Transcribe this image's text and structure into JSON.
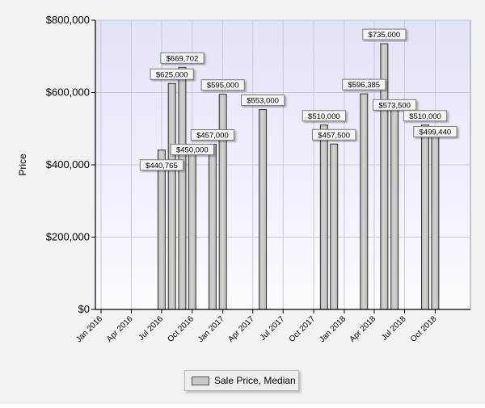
{
  "chart_data": {
    "type": "bar",
    "ylabel": "Price",
    "xlabel": "",
    "title": "",
    "ylim": [
      0,
      800000
    ],
    "y_ticks": [
      0,
      200000,
      400000,
      600000,
      800000
    ],
    "y_tick_labels": [
      "$0",
      "$200,000",
      "$400,000",
      "$600,000",
      "$800,000"
    ],
    "x_range": [
      "2015-12-15",
      "2019-01-15"
    ],
    "x_ticks": [
      {
        "date": "2016-01-01",
        "label": "Jan 2016"
      },
      {
        "date": "2016-04-01",
        "label": "Apr 2016"
      },
      {
        "date": "2016-07-01",
        "label": "Jul 2016"
      },
      {
        "date": "2016-10-01",
        "label": "Oct 2016"
      },
      {
        "date": "2017-01-01",
        "label": "Jan 2017"
      },
      {
        "date": "2017-04-01",
        "label": "Apr 2017"
      },
      {
        "date": "2017-07-01",
        "label": "Jul 2017"
      },
      {
        "date": "2017-10-01",
        "label": "Oct 2017"
      },
      {
        "date": "2018-01-01",
        "label": "Jan 2018"
      },
      {
        "date": "2018-04-01",
        "label": "Apr 2018"
      },
      {
        "date": "2018-07-01",
        "label": "Jul 2018"
      },
      {
        "date": "2018-10-01",
        "label": "Oct 2018"
      }
    ],
    "grid": true,
    "legend_position": "bottom-center",
    "series": [
      {
        "name": "Sale Price, Median",
        "color": "#c6c9c3",
        "points": [
          {
            "date": "2016-07-01",
            "value": 440765,
            "label": "$440,765"
          },
          {
            "date": "2016-08-01",
            "value": 625000,
            "label": "$625,000"
          },
          {
            "date": "2016-09-01",
            "value": 669702,
            "label": "$669,702"
          },
          {
            "date": "2016-10-01",
            "value": 450000,
            "label": "$450,000"
          },
          {
            "date": "2016-12-01",
            "value": 457000,
            "label": "$457,000"
          },
          {
            "date": "2017-01-01",
            "value": 595000,
            "label": "$595,000"
          },
          {
            "date": "2017-05-01",
            "value": 553000,
            "label": "$553,000"
          },
          {
            "date": "2017-11-01",
            "value": 510000,
            "label": "$510,000"
          },
          {
            "date": "2017-12-01",
            "value": 457500,
            "label": "$457,500"
          },
          {
            "date": "2018-03-01",
            "value": 596385,
            "label": "$596,385"
          },
          {
            "date": "2018-05-01",
            "value": 735000,
            "label": "$735,000"
          },
          {
            "date": "2018-06-01",
            "value": 573500,
            "label": "$573,500"
          },
          {
            "date": "2018-09-01",
            "value": 510000,
            "label": "$510,000"
          },
          {
            "date": "2018-10-01",
            "value": 499440,
            "label": "$499,440"
          }
        ]
      }
    ]
  },
  "legend": {
    "label": "Sale Price, Median"
  }
}
